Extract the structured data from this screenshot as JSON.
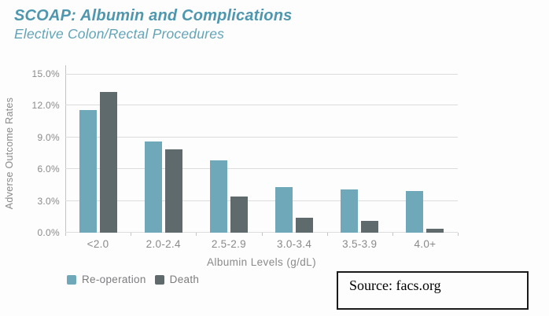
{
  "header": {
    "title": "SCOAP: Albumin and Complications",
    "subtitle": "Elective Colon/Rectal Procedures"
  },
  "chart_data": {
    "type": "bar",
    "title": "SCOAP: Albumin and Complications",
    "subtitle": "Elective Colon/Rectal Procedures",
    "categories": [
      "<2.0",
      "2.0-2.4",
      "2.5-2.9",
      "3.0-3.4",
      "3.5-3.9",
      "4.0+"
    ],
    "series": [
      {
        "name": "Re-operation",
        "color": "#6fa9b9",
        "values": [
          11.6,
          8.6,
          6.8,
          4.3,
          4.1,
          3.9
        ]
      },
      {
        "name": "Death",
        "color": "#5f6a6d",
        "values": [
          13.3,
          7.9,
          3.4,
          1.4,
          1.1,
          0.4
        ]
      }
    ],
    "xlabel": "Albumin Levels (g/dL)",
    "ylabel": "Adverse Outcome Rates",
    "ylim": [
      0,
      15
    ],
    "ytick_step": 3,
    "yticks": [
      "0.0%",
      "3.0%",
      "6.0%",
      "9.0%",
      "12.0%",
      "15.0%"
    ],
    "grid": true,
    "legend_position": "bottom-left"
  },
  "legend": {
    "items": [
      {
        "label": "Re-operation",
        "color": "#6fa9b9"
      },
      {
        "label": "Death",
        "color": "#5f6a6d"
      }
    ]
  },
  "source": {
    "text": "Source: facs.org"
  },
  "colors": {
    "title": "#4e97ae",
    "subtitle": "#63a4b7",
    "axis_text": "#8a8a8a",
    "gridline": "#dcdcdc",
    "axis_line": "#c4c4c4",
    "reoperation": "#6fa9b9",
    "death": "#5f6a6d"
  }
}
